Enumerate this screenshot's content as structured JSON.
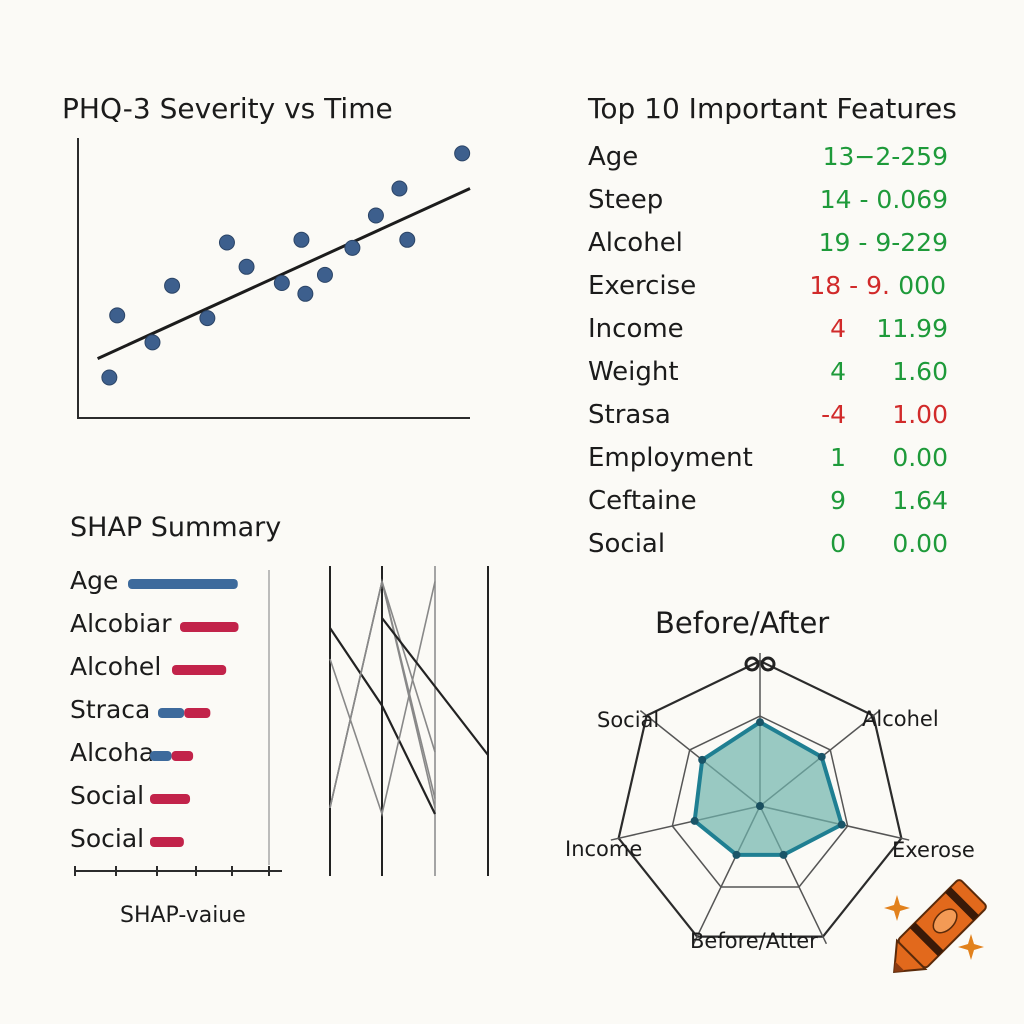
{
  "colors": {
    "point": "#3d5f8d",
    "trend": "#1c1c1c",
    "positive": "#1e9a3a",
    "negative": "#d12a2a",
    "shap_blue": "#3d6a9c",
    "shap_red": "#c2234a",
    "radar_stroke": "#1f7f92",
    "radar_fill": "#6fb3ad",
    "crayon": "#e2691c",
    "sparkle": "#e2811c"
  },
  "chart_data": [
    {
      "type": "scatter",
      "title": "PHQ-3 Severity vs Time",
      "xlabel": "",
      "ylabel": "",
      "xlim": [
        0,
        100
      ],
      "ylim": [
        0,
        100
      ],
      "grid": false,
      "points": [
        {
          "x": 8,
          "y": 15
        },
        {
          "x": 10,
          "y": 38
        },
        {
          "x": 19,
          "y": 28
        },
        {
          "x": 24,
          "y": 49
        },
        {
          "x": 33,
          "y": 37
        },
        {
          "x": 38,
          "y": 65
        },
        {
          "x": 43,
          "y": 56
        },
        {
          "x": 52,
          "y": 50
        },
        {
          "x": 57,
          "y": 66
        },
        {
          "x": 58,
          "y": 46
        },
        {
          "x": 63,
          "y": 53
        },
        {
          "x": 70,
          "y": 63
        },
        {
          "x": 76,
          "y": 75
        },
        {
          "x": 82,
          "y": 85
        },
        {
          "x": 84,
          "y": 66
        },
        {
          "x": 98,
          "y": 98
        }
      ],
      "trend": {
        "x": [
          5,
          100
        ],
        "y": [
          22,
          85
        ]
      }
    },
    {
      "type": "table",
      "title": "Top 10 Important Features",
      "rows": [
        {
          "feature": "Age",
          "a": "13−2-259",
          "b": "",
          "a_sign": "pos",
          "b_sign": "pos"
        },
        {
          "feature": "Steep",
          "a": "14 - 0.069",
          "b": "",
          "a_sign": "pos",
          "b_sign": "pos"
        },
        {
          "feature": "Alcohel",
          "a": "19 - 9-229",
          "b": "",
          "a_sign": "pos",
          "b_sign": "pos"
        },
        {
          "feature": "Exercise",
          "a": "18 - 9.",
          "b": "000",
          "a_sign": "neg",
          "b_sign": "pos"
        },
        {
          "feature": "Income",
          "a": "4",
          "b": "11.99",
          "a_sign": "neg",
          "b_sign": "pos"
        },
        {
          "feature": "Weight",
          "a": "4",
          "b": "1.60",
          "a_sign": "pos",
          "b_sign": "pos"
        },
        {
          "feature": "Strasa",
          "a": "-4",
          "b": "1.00",
          "a_sign": "neg",
          "b_sign": "neg"
        },
        {
          "feature": "Employment",
          "a": "1",
          "b": "0.00",
          "a_sign": "pos",
          "b_sign": "pos"
        },
        {
          "feature": "Ceftaine",
          "a": "9",
          "b": "1.64",
          "a_sign": "pos",
          "b_sign": "pos"
        },
        {
          "feature": "Social",
          "a": "0",
          "b": "0.00",
          "a_sign": "pos",
          "b_sign": "pos"
        }
      ]
    },
    {
      "type": "bar",
      "title": "SHAP Summary",
      "xlabel": "SHAP-vaiue",
      "categories": [
        "Age",
        "Alcobiar",
        "Alcohel",
        "Straca",
        "Alcoha",
        "Social",
        "Social"
      ],
      "values": [
        1.0,
        0.95,
        0.88,
        0.85,
        0.7,
        0.65,
        0.55
      ],
      "colors": [
        "blue",
        "red",
        "red",
        "blue-red",
        "blue-red",
        "red",
        "red"
      ]
    },
    {
      "type": "line",
      "title": "",
      "series": [
        {
          "values": [
            80,
            55,
            20
          ]
        },
        {
          "values": [
            22,
            95,
            22
          ]
        },
        {
          "values": [
            22,
            95,
            40
          ]
        },
        {
          "values": [
            70,
            20,
            95
          ]
        },
        {
          "values": [
            22,
            95,
            25
          ]
        }
      ]
    },
    {
      "type": "radar",
      "title": "Before/After",
      "axes": [
        "",
        "Alcohel",
        "Exerose",
        "Before/Atter",
        "",
        "Income",
        "Social"
      ],
      "series": [
        {
          "values": [
            0.85,
            0.8,
            0.85,
            0.55,
            0.55,
            0.68,
            0.75
          ]
        }
      ],
      "max": 1.0
    }
  ]
}
